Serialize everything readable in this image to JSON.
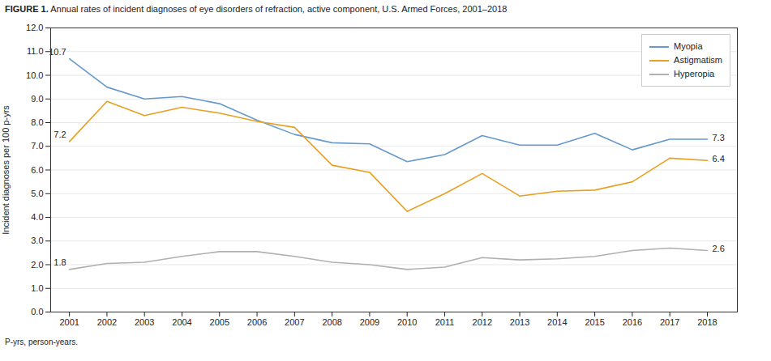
{
  "chart_data": {
    "type": "line",
    "title": "FIGURE 1. Annual rates of incident diagnoses of eye disorders of refraction, active component, U.S. Armed Forces, 2001–2018",
    "caption": "P-yrs, person-years.",
    "ylabel": "Incident diagnoses per 100 p-yrs",
    "x": [
      2001,
      2002,
      2003,
      2004,
      2005,
      2006,
      2007,
      2008,
      2009,
      2010,
      2011,
      2012,
      2013,
      2014,
      2015,
      2016,
      2017,
      2018
    ],
    "series": [
      {
        "name": "Myopia",
        "color": "#6699cc",
        "values": [
          10.7,
          9.5,
          9.0,
          9.1,
          8.8,
          8.1,
          7.5,
          7.15,
          7.1,
          6.35,
          6.65,
          7.45,
          7.05,
          7.05,
          7.55,
          6.85,
          7.3,
          7.3
        ]
      },
      {
        "name": "Astigmatism",
        "color": "#e8a020",
        "values": [
          7.2,
          8.9,
          8.3,
          8.65,
          8.4,
          8.05,
          7.8,
          6.2,
          5.9,
          4.25,
          5.0,
          5.85,
          4.9,
          5.1,
          5.15,
          5.5,
          6.5,
          6.4
        ]
      },
      {
        "name": "Hyperopia",
        "color": "#b0b0b0",
        "values": [
          1.8,
          2.05,
          2.1,
          2.35,
          2.55,
          2.55,
          2.35,
          2.1,
          2.0,
          1.8,
          1.9,
          2.3,
          2.2,
          2.25,
          2.35,
          2.6,
          2.7,
          2.6
        ]
      }
    ],
    "xlim": [
      2000.5,
      2018.8
    ],
    "xticks": [
      2001,
      2002,
      2003,
      2004,
      2005,
      2006,
      2007,
      2008,
      2009,
      2010,
      2011,
      2012,
      2013,
      2014,
      2015,
      2016,
      2017,
      2018
    ],
    "ylim": [
      0.0,
      12.0
    ],
    "yticks": [
      {
        "value": 0,
        "label": "0.0"
      },
      {
        "value": 1,
        "label": "1.0"
      },
      {
        "value": 2,
        "label": "2.0"
      },
      {
        "value": 3,
        "label": "3.0"
      },
      {
        "value": 4,
        "label": "4.0"
      },
      {
        "value": 5,
        "label": "5.0"
      },
      {
        "value": 6,
        "label": "6.0"
      },
      {
        "value": 7,
        "label": "7.0"
      },
      {
        "value": 8,
        "label": "8.0"
      },
      {
        "value": 9,
        "label": "9.0"
      },
      {
        "value": 10,
        "label": "10.0"
      },
      {
        "value": 11,
        "label": "11.0"
      },
      {
        "value": 12,
        "label": "12.0"
      }
    ],
    "grid": true,
    "legend": "upper right",
    "annotations": [
      {
        "x": 2001,
        "y": 10.7,
        "text": "10.7"
      },
      {
        "x": 2001,
        "y": 7.2,
        "text": "7.2"
      },
      {
        "x": 2001,
        "y": 1.8,
        "text": "1.8"
      },
      {
        "x": 2018,
        "y": 7.3,
        "text": "7.3"
      },
      {
        "x": 2018,
        "y": 6.4,
        "text": "6.4"
      },
      {
        "x": 2018,
        "y": 2.6,
        "text": "2.6"
      }
    ]
  }
}
